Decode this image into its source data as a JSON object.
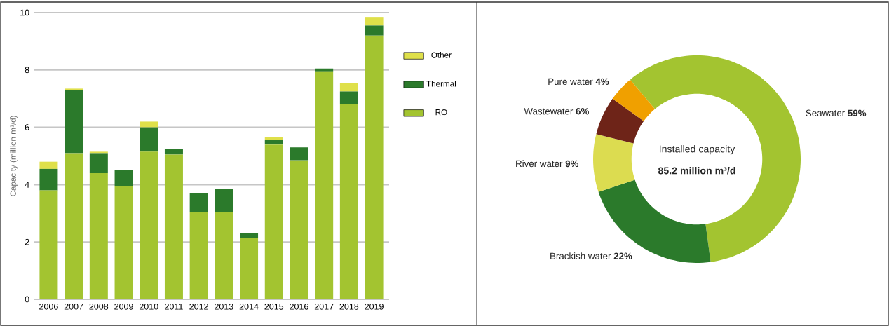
{
  "chart_data": [
    {
      "type": "bar",
      "stacked": true,
      "ylabel": "Capacity (million m³/d)",
      "categories": [
        "2006",
        "2007",
        "2008",
        "2009",
        "2010",
        "2011",
        "2012",
        "2013",
        "2014",
        "2015",
        "2016",
        "2017",
        "2018",
        "2019"
      ],
      "series": [
        {
          "name": "RO",
          "color": "#a3c430",
          "values": [
            3.8,
            5.1,
            4.4,
            3.95,
            5.15,
            5.05,
            3.05,
            3.05,
            2.15,
            5.4,
            4.85,
            7.95,
            6.8,
            9.2
          ]
        },
        {
          "name": "Thermal",
          "color": "#2b7a2b",
          "values": [
            0.75,
            2.2,
            0.7,
            0.55,
            0.85,
            0.2,
            0.65,
            0.8,
            0.15,
            0.15,
            0.45,
            0.1,
            0.45,
            0.35
          ]
        },
        {
          "name": "Other",
          "color": "#dfe04a",
          "values": [
            0.25,
            0.05,
            0.05,
            0,
            0.2,
            0,
            0,
            0,
            0,
            0.1,
            0,
            0,
            0.3,
            0.3
          ]
        }
      ],
      "ylim": [
        0,
        10
      ],
      "yticks": [
        0,
        2,
        4,
        6,
        8,
        10
      ],
      "grid": "y",
      "legend": "right"
    },
    {
      "type": "donut",
      "categories": [
        "Seawater",
        "Brackish water",
        "River water",
        "Wastewater",
        "Pure water"
      ],
      "values": [
        59,
        22,
        9,
        6,
        4
      ],
      "colors": [
        "#a3c430",
        "#2b7a2b",
        "#dcdc50",
        "#6e2418",
        "#f0a000"
      ],
      "value_labels": [
        "59%",
        "22%",
        "9%",
        "6%",
        "4%"
      ],
      "annotations": [
        "Installed capacity",
        "85.2 million m³/d"
      ]
    }
  ]
}
